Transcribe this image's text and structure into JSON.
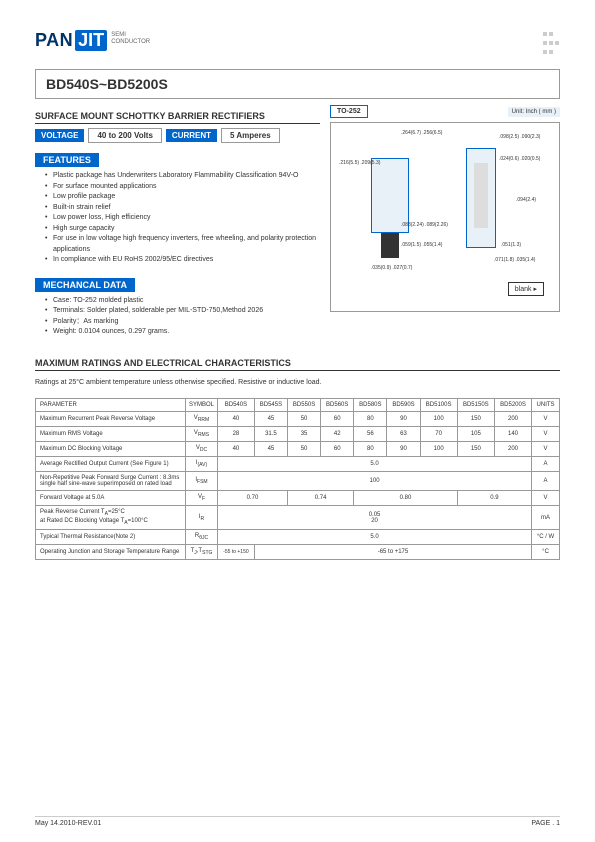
{
  "logo": {
    "pan": "PAN",
    "jit": "JIT",
    "sub1": "SEMI",
    "sub2": "CONDUCTOR"
  },
  "title": "BD540S~BD5200S",
  "subtitle": "SURFACE MOUNT SCHOTTKY BARRIER RECTIFIERS",
  "voltage_label": "VOLTAGE",
  "voltage_value": "40 to 200 Volts",
  "current_label": "CURRENT",
  "current_value": "5 Amperes",
  "package": "TO-252",
  "unit_label": "Unit: Inch ( mm )",
  "features_title": "FEATURES",
  "features": [
    "Plastic package has Underwriters Laboratory Flammability Classification 94V-O",
    "For surface mounted applications",
    "Low profile package",
    "Built-in strain relief",
    "Low power loss, High efficiency",
    "High surge capacity",
    "For use in low voltage high frequency inverters, free wheeling, and polarity protection applications",
    "In compliance with EU RoHS 2002/95/EC directives"
  ],
  "mech_title": "MECHANCAL DATA",
  "mech": [
    "Case: TO-252 molded plastic",
    "Terminals: Solder plated, solderable per MIL-STD-750,Method 2026",
    "Polarity：As marking",
    "Weight: 0.0104 ounces, 0.297 grams."
  ],
  "blank": "blank",
  "dim": {
    "d1": ".264(6.7)\n.256(6.5)",
    "d2": ".098(2.5)\n.090(2.3)",
    "d3": ".216(5.5)\n.209(5.3)",
    "d4": ".024(0.6)\n.020(0.5)",
    "d5": ".088(2.24)\n.089(2.26)",
    "d6": ".094(2.4)",
    "d7": ".059(1.5)\n.055(1.4)",
    "d8": ".035(0.9)\n.027(0.7)",
    "d9": ".051(1.3)",
    "d10": ".071(1.8)\n.035(1.4)"
  },
  "ratings_title": "MAXIMUM RATINGS AND ELECTRICAL CHARACTERISTICS",
  "ratings_note": "Ratings at 25°C ambient temperature unless otherwise specified. Resistive or inductive load.",
  "table": {
    "headers": [
      "PARAMETER",
      "SYMBOL",
      "BD540S",
      "BD545S",
      "BD550S",
      "BD560S",
      "BD580S",
      "BD590S",
      "BD5100S",
      "BD5150S",
      "BD5200S",
      "UNITS"
    ],
    "rows": [
      {
        "param": "Maximum Recurrent Peak Reverse Voltage",
        "sym": "V<sub>RRM</sub>",
        "vals": [
          "40",
          "45",
          "50",
          "60",
          "80",
          "90",
          "100",
          "150",
          "200"
        ],
        "unit": "V"
      },
      {
        "param": "Maximum RMS Voltage",
        "sym": "V<sub>RMS</sub>",
        "vals": [
          "28",
          "31.5",
          "35",
          "42",
          "56",
          "63",
          "70",
          "105",
          "140"
        ],
        "unit": "V"
      },
      {
        "param": "Maximum DC Blocking Voltage",
        "sym": "V<sub>DC</sub>",
        "vals": [
          "40",
          "45",
          "50",
          "60",
          "80",
          "90",
          "100",
          "150",
          "200"
        ],
        "unit": "V"
      },
      {
        "param": "Average Rectified Output Current (See Figure 1)",
        "sym": "I<sub>(AV)</sub>",
        "span": "5.0",
        "unit": "A"
      },
      {
        "param": "Non-Repetitive Peak Forward Surge Current : 8.3ms single half sine-wave superimposed on rated load",
        "sym": "I<sub>FSM</sub>",
        "span": "100",
        "unit": "A"
      },
      {
        "param": "Forward Voltage at 5.0A",
        "sym": "V<sub>F</sub>",
        "groups": [
          [
            "2",
            "0.70"
          ],
          [
            "2",
            "0.74"
          ],
          [
            "3",
            "0.80"
          ],
          [
            "2",
            "0.9"
          ]
        ],
        "unit": "V"
      },
      {
        "param": "Peak Reverse Current T<sub>A</sub>=25°C<br>at Rated DC Blocking Voltage T<sub>A</sub>=100°C",
        "sym": "I<sub>R</sub>",
        "span": "0.05<br>20",
        "unit": "mA"
      },
      {
        "param": "Typical Thermal Resistance(Note 2)",
        "sym": "R<sub>θJC</sub>",
        "span": "5.0",
        "unit": "°C / W"
      },
      {
        "param": "Operating Junction and Storage Temperature Range",
        "sym": "T<sub>J</sub>,T<sub>STG</sub>",
        "first": "-55 to +150",
        "rest": "-65 to +175",
        "unit": "°C"
      }
    ]
  },
  "footer_left": "May 14.2010-REV.01",
  "footer_right": "PAGE .  1"
}
